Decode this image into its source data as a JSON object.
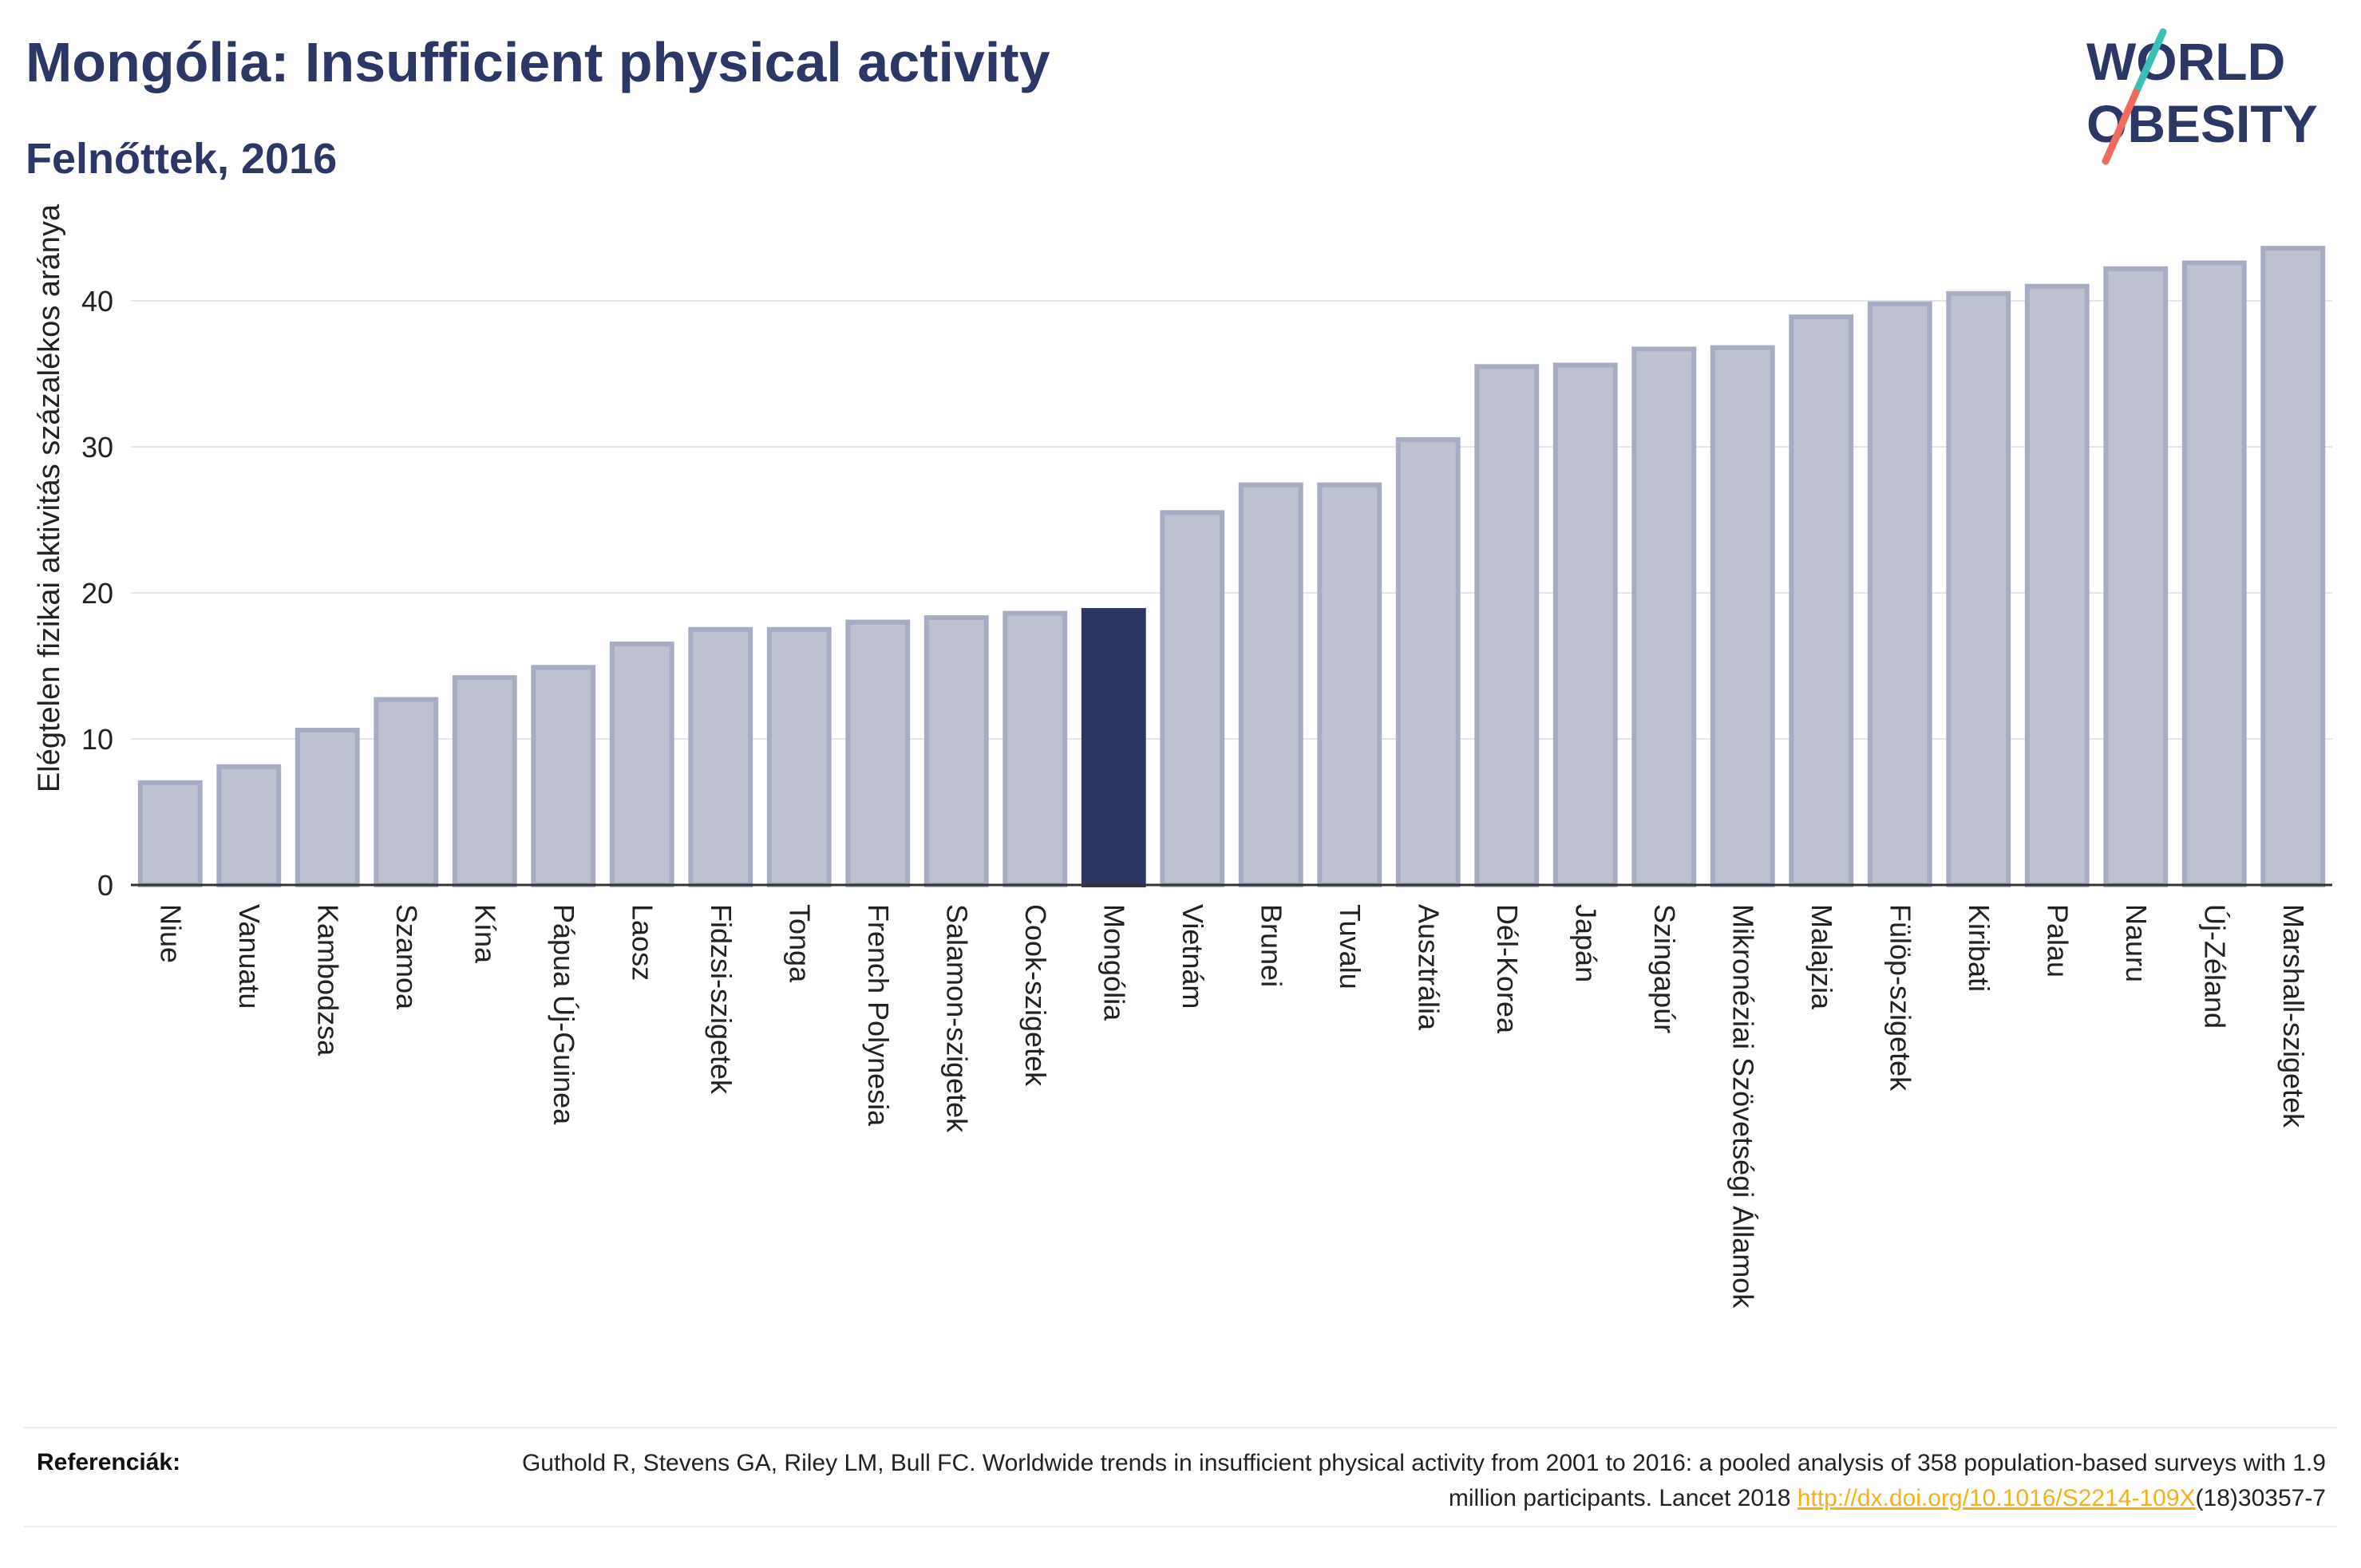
{
  "title": "Mongólia: Insufficient physical activity",
  "subtitle": "Felnőttek, 2016",
  "logo": {
    "line1": "WORLD",
    "line2": "OBESITY"
  },
  "colors": {
    "bar_fill": "#bec2d0",
    "bar_stroke": "#a6acc2",
    "highlight": "#2b3662",
    "text": "#2b3764",
    "logo_teal": "#3bbfb4",
    "logo_red": "#ef6b5e",
    "link": "#f2b01e"
  },
  "chart_data": {
    "type": "bar",
    "title": "Mongólia: Insufficient physical activity",
    "subtitle": "Felnőttek, 2016",
    "ylabel": "Elégtelen fizikai aktivitás százalékos aránya",
    "xlabel": "",
    "ylim": [
      0,
      45
    ],
    "yticks": [
      0,
      10,
      20,
      30,
      40
    ],
    "grid": true,
    "highlight": "Mongólia",
    "categories": [
      "Niue",
      "Vanuatu",
      "Kambodzsa",
      "Szamoa",
      "Kína",
      "Pápua Új-Guinea",
      "Laosz",
      "Fidzsi-szigetek",
      "Tonga",
      "French Polynesia",
      "Salamon-szigetek",
      "Cook-szigetek",
      "Mongólia",
      "Vietnám",
      "Brunei",
      "Tuvalu",
      "Ausztrália",
      "Dél-Korea",
      "Japán",
      "Szingapúr",
      "Mikronéziai Szövetségi Államok",
      "Malajzia",
      "Fülöp-szigetek",
      "Kiribati",
      "Palau",
      "Nauru",
      "Új-Zéland",
      "Marshall-szigetek"
    ],
    "values": [
      7.0,
      8.1,
      10.6,
      12.7,
      14.2,
      14.9,
      16.5,
      17.5,
      17.5,
      18.0,
      18.3,
      18.6,
      18.8,
      25.5,
      27.4,
      27.4,
      30.5,
      35.5,
      35.6,
      36.7,
      36.8,
      38.9,
      39.8,
      40.5,
      41.0,
      42.2,
      42.6,
      43.6
    ]
  },
  "references": {
    "label": "Referenciák:",
    "text_before": "Guthold R, Stevens GA, Riley LM, Bull FC. Worldwide trends in insufficient physical activity from 2001 to 2016: a pooled analysis of 358 population-based surveys with 1.9 million participants. Lancet 2018 ",
    "link": "http://dx.doi.org/10.1016/S2214-109X",
    "text_after": "(18)30357-7"
  }
}
